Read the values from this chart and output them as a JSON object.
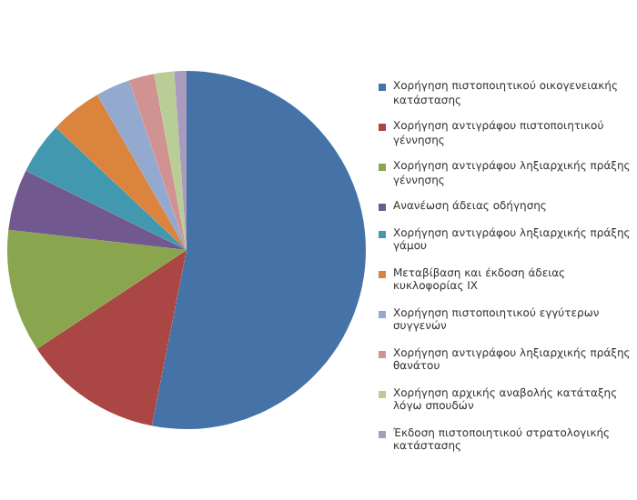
{
  "chart_data": {
    "type": "pie",
    "legend": "right",
    "categories": [
      "Χορήγηση πιστοποιητικού οικογενειακής κατάστασης",
      "Χορήγηση αντιγράφου πιστοποιητικού γέννησης",
      "Χορήγηση αντιγράφου ληξιαρχικής πράξης γέννησης",
      "Ανανέωση άδειας οδήγησης",
      "Χορήγηση αντιγράφου ληξιαρχικής πράξης γάμου",
      "Μεταβίβαση και έκδοση άδειας κυκλοφορίας ΙΧ",
      "Χορήγηση πιστοποιητικού εγγύτερων συγγενών",
      "Χορήγηση αντιγράφου ληξιαρχικής πράξης θανάτου",
      "Χορήγηση αρχικής αναβολής κατάταξης λόγω σπουδών",
      "Έκδοση πιστοποιητικού στρατολογικής κατάστασης"
    ],
    "values": [
      53.1,
      12.6,
      11.1,
      5.5,
      4.7,
      4.7,
      3.1,
      2.3,
      1.8,
      1.1
    ],
    "colors": [
      "#4572a7",
      "#aa4643",
      "#89a54e",
      "#71588f",
      "#4198af",
      "#db843d",
      "#93a9cf",
      "#d19392",
      "#b9cd96",
      "#a99bbd"
    ]
  }
}
